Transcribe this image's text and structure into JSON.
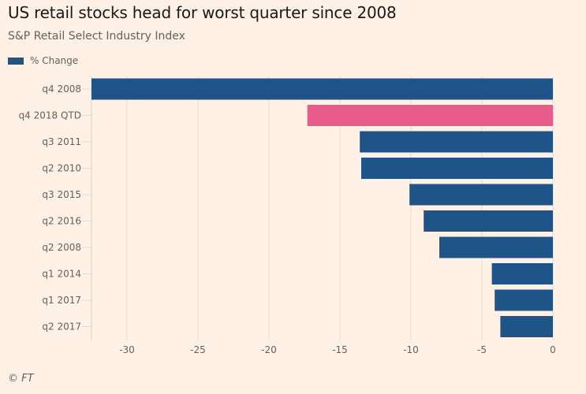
{
  "header": {
    "title": "US retail stocks head for worst quarter since 2008",
    "subtitle": "S&P Retail Select Industry Index"
  },
  "legend": {
    "label": "% Change",
    "color": "#1f5489"
  },
  "footer": {
    "source": "© FT"
  },
  "colors": {
    "background": "#fff1e5",
    "primary": "#1f5489",
    "highlight": "#e95d8c",
    "grid": "#e6d9ce"
  },
  "chart_data": {
    "type": "bar",
    "orientation": "horizontal",
    "title": "US retail stocks head for worst quarter since 2008",
    "subtitle": "S&P Retail Select Industry Index",
    "xlabel": "",
    "ylabel": "",
    "categories": [
      "q4 2008",
      "q4 2018 QTD",
      "q3 2011",
      "q2 2010",
      "q3 2015",
      "q2 2016",
      "q2 2008",
      "q1 2014",
      "q1 2017",
      "q2 2017"
    ],
    "series": [
      {
        "name": "% Change",
        "values": [
          -32.5,
          -17.3,
          -13.6,
          -13.5,
          -10.1,
          -9.1,
          -8.0,
          -4.3,
          -4.1,
          -3.7
        ]
      }
    ],
    "highlight_category": "q4 2018 QTD",
    "xlim": [
      -32.5,
      0
    ],
    "xticks": [
      -30,
      -25,
      -20,
      -15,
      -10,
      -5,
      0
    ],
    "grid": true,
    "legend_position": "top-left",
    "source": "© FT"
  }
}
